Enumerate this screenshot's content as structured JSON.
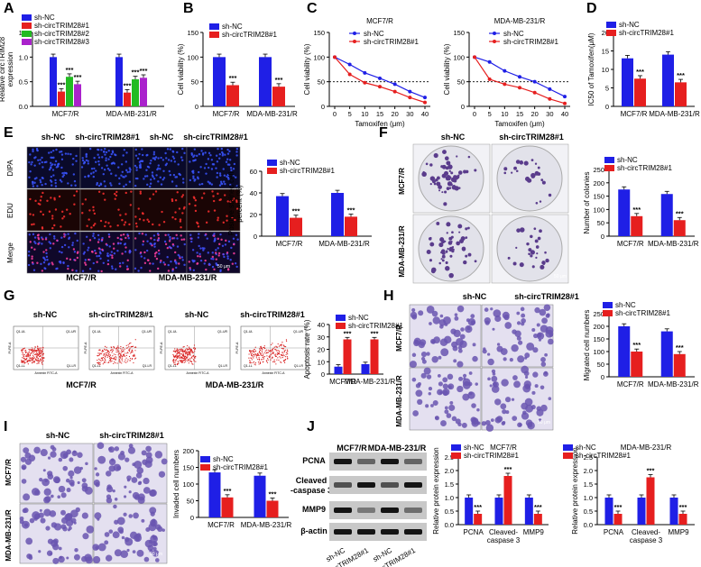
{
  "panel_letters": [
    "A",
    "B",
    "C",
    "D",
    "E",
    "F",
    "G",
    "H",
    "I",
    "J"
  ],
  "colors": {
    "nc": "#1f1fe6",
    "circ": "#e61f1f",
    "circ2": "#22bb22",
    "circ3": "#aa22cc",
    "grey": "#888888"
  },
  "legend": {
    "nc": "sh-NC",
    "circ": "sh-circTRIM28#1",
    "circ2": "sh-circTRIM28#2",
    "circ3": "sh-circTRIM28#3"
  },
  "groups": [
    "MCF7/R",
    "MDA-MB-231/R"
  ],
  "sig": "***",
  "tamoxifen_label": "Tamoxifen (μm)",
  "tamoxifen_ticks": [
    "0",
    "5",
    "10",
    "15",
    "20",
    "30",
    "40"
  ],
  "microscopy": {
    "e_cols": [
      "sh-NC",
      "sh-circTRIM28#1",
      "sh-NC",
      "sh-circTRIM28#1"
    ],
    "e_rows": [
      "DIPA",
      "EDU",
      "Merge"
    ],
    "e_groups": [
      "MCF7/R",
      "MDA-MB-231/R"
    ],
    "f_cols": [
      "sh-NC",
      "sh-circTRIM28#1"
    ],
    "f_rows": [
      "MCF7/R",
      "MDA-MB-231/R"
    ],
    "g_cols": [
      "sh-NC",
      "sh-circTRIM28#1",
      "sh-NC",
      "sh-circTRIM28#1"
    ],
    "g_groups": [
      "MCF7/R",
      "MDA-MB-231/R"
    ],
    "flow_quads": [
      "Q1-UL",
      "Q1-UR",
      "Q1-LL",
      "Q1-LR"
    ],
    "flow_xlabel": "Annexin FITC-A",
    "flow_ylabel": "PI-PE-A",
    "h_cols": [
      "sh-NC",
      "sh-circTRIM28#1"
    ],
    "h_rows": [
      "MCF7/R",
      "MDA-MB-231/R"
    ],
    "i_cols": [
      "sh-NC",
      "sh-circTRIM28#1"
    ],
    "i_rows": [
      "MCF7/R",
      "MDA-MB-231/R"
    ],
    "scale": "50 μm",
    "j_top": [
      "MCF7/R",
      "MDA-MB-231/R"
    ],
    "j_rows": [
      "PCNA",
      "Cleaved -caspase 3",
      "MMP9",
      "β-actin"
    ],
    "j_lanes": [
      "sh-NC",
      "sh-circTRIM28#1",
      "sh-NC",
      "sh-circTRIM28#1"
    ]
  },
  "chart_data": [
    {
      "id": "A",
      "type": "bar",
      "ylabel": "Relative circTRIM28 expression",
      "ylim": [
        0,
        1.5
      ],
      "yticks": [
        "0.0",
        "0.5",
        "1.0",
        "1.5"
      ],
      "categories": [
        "MCF7/R",
        "MDA-MB-231/R"
      ],
      "series": [
        {
          "name": "sh-NC",
          "values": [
            1.0,
            1.0
          ]
        },
        {
          "name": "sh-circTRIM28#1",
          "values": [
            0.3,
            0.28
          ]
        },
        {
          "name": "sh-circTRIM28#2",
          "values": [
            0.6,
            0.55
          ]
        },
        {
          "name": "sh-circTRIM28#3",
          "values": [
            0.45,
            0.58
          ]
        }
      ]
    },
    {
      "id": "B",
      "type": "bar",
      "ylabel": "Cell viability (%)",
      "ylim": [
        0,
        150
      ],
      "yticks": [
        "0",
        "50",
        "100",
        "150"
      ],
      "categories": [
        "MCF7/R",
        "MDA-MB-231/R"
      ],
      "series": [
        {
          "name": "sh-NC",
          "values": [
            100,
            100
          ]
        },
        {
          "name": "sh-circTRIM28#1",
          "values": [
            43,
            40
          ]
        }
      ]
    },
    {
      "id": "C1",
      "type": "line",
      "title": "MCF7/R",
      "ylabel": "Cell viability (%)",
      "xlabel": "Tamoxifen (μm)",
      "categories": [
        "0",
        "5",
        "10",
        "15",
        "20",
        "30",
        "40"
      ],
      "ylim": [
        0,
        150
      ],
      "yticks": [
        "0",
        "50",
        "100",
        "150"
      ],
      "series": [
        {
          "name": "sh-NC",
          "values": [
            100,
            85,
            68,
            57,
            45,
            30,
            18
          ]
        },
        {
          "name": "sh-circTRIM28#1",
          "values": [
            100,
            65,
            48,
            40,
            30,
            18,
            8
          ]
        }
      ]
    },
    {
      "id": "C2",
      "type": "line",
      "title": "MDA-MB-231/R",
      "ylabel": "Cell viability (%)",
      "xlabel": "Tamoxifen (μm)",
      "categories": [
        "0",
        "5",
        "10",
        "15",
        "20",
        "30",
        "40"
      ],
      "ylim": [
        0,
        150
      ],
      "yticks": [
        "0",
        "50",
        "100",
        "150"
      ],
      "series": [
        {
          "name": "sh-NC",
          "values": [
            100,
            90,
            72,
            60,
            50,
            35,
            20
          ]
        },
        {
          "name": "sh-circTRIM28#1",
          "values": [
            100,
            55,
            45,
            38,
            28,
            15,
            6
          ]
        }
      ]
    },
    {
      "id": "D",
      "type": "bar",
      "ylabel": "IC50 of Tamoxifen(μM)",
      "ylim": [
        0,
        20
      ],
      "yticks": [
        "0",
        "5",
        "10",
        "15",
        "20"
      ],
      "categories": [
        "MCF7/R",
        "MDA-MB-231/R"
      ],
      "series": [
        {
          "name": "sh-NC",
          "values": [
            13,
            14
          ]
        },
        {
          "name": "sh-circTRIM28#1",
          "values": [
            7.5,
            6.5
          ]
        }
      ]
    },
    {
      "id": "E",
      "type": "bar",
      "ylabel": "Positive stained cell percent (%)",
      "ylim": [
        0,
        60
      ],
      "yticks": [
        "0",
        "20",
        "40",
        "60"
      ],
      "categories": [
        "MCF7/R",
        "MDA-MB-231/R"
      ],
      "series": [
        {
          "name": "sh-NC",
          "values": [
            37,
            40
          ]
        },
        {
          "name": "sh-circTRIM28#1",
          "values": [
            17,
            18
          ]
        }
      ]
    },
    {
      "id": "F",
      "type": "bar",
      "ylabel": "Number of colonies",
      "ylim": [
        0,
        250
      ],
      "yticks": [
        "0",
        "50",
        "100",
        "150",
        "200",
        "250"
      ],
      "categories": [
        "MCF7/R",
        "MDA-MB-231/R"
      ],
      "series": [
        {
          "name": "sh-NC",
          "values": [
            175,
            158
          ]
        },
        {
          "name": "sh-circTRIM28#1",
          "values": [
            75,
            60
          ]
        }
      ]
    },
    {
      "id": "G",
      "type": "bar",
      "ylabel": "Apoptosis rate (%)",
      "ylim": [
        0,
        40
      ],
      "yticks": [
        "0",
        "10",
        "20",
        "30",
        "40"
      ],
      "categories": [
        "MCF7/R",
        "MDA-MB-231/R"
      ],
      "series": [
        {
          "name": "sh-NC",
          "values": [
            6,
            8
          ]
        },
        {
          "name": "sh-circTRIM28#1",
          "values": [
            28,
            28
          ]
        }
      ]
    },
    {
      "id": "H",
      "type": "bar",
      "ylabel": "Migrated cell numbers",
      "ylim": [
        0,
        250
      ],
      "yticks": [
        "0",
        "50",
        "100",
        "150",
        "200",
        "250"
      ],
      "categories": [
        "MCF7/R",
        "MDA-MB-231/R"
      ],
      "series": [
        {
          "name": "sh-NC",
          "values": [
            200,
            180
          ]
        },
        {
          "name": "sh-circTRIM28#1",
          "values": [
            100,
            90
          ]
        }
      ]
    },
    {
      "id": "I",
      "type": "bar",
      "ylabel": "Invaded cell numbers",
      "ylim": [
        0,
        200
      ],
      "yticks": [
        "0",
        "50",
        "100",
        "150",
        "200"
      ],
      "categories": [
        "MCF7/R",
        "MDA-MB-231/R"
      ],
      "series": [
        {
          "name": "sh-NC",
          "values": [
            135,
            125
          ]
        },
        {
          "name": "sh-circTRIM28#1",
          "values": [
            60,
            50
          ]
        }
      ]
    },
    {
      "id": "J1",
      "type": "bar",
      "title": "MCF7/R",
      "ylabel": "Relative protein expression",
      "ylim": [
        0,
        2.5
      ],
      "yticks": [
        "0.0",
        "0.5",
        "1.0",
        "1.5",
        "2.0",
        "2.5"
      ],
      "categories": [
        "PCNA",
        "Cleaved- caspase 3",
        "MMP9"
      ],
      "series": [
        {
          "name": "sh-NC",
          "values": [
            1.0,
            1.0,
            1.0
          ]
        },
        {
          "name": "sh-circTRIM28#1",
          "values": [
            0.4,
            1.8,
            0.4
          ]
        }
      ]
    },
    {
      "id": "J2",
      "type": "bar",
      "title": "MDA-MB-231/R",
      "ylabel": "Relative protein expression",
      "ylim": [
        0,
        2.5
      ],
      "yticks": [
        "0.0",
        "0.5",
        "1.0",
        "1.5",
        "2.0",
        "2.5"
      ],
      "categories": [
        "PCNA",
        "Cleaved- caspase 3",
        "MMP9"
      ],
      "series": [
        {
          "name": "sh-NC",
          "values": [
            1.0,
            1.0,
            1.0
          ]
        },
        {
          "name": "sh-circTRIM28#1",
          "values": [
            0.4,
            1.75,
            0.4
          ]
        }
      ]
    }
  ]
}
